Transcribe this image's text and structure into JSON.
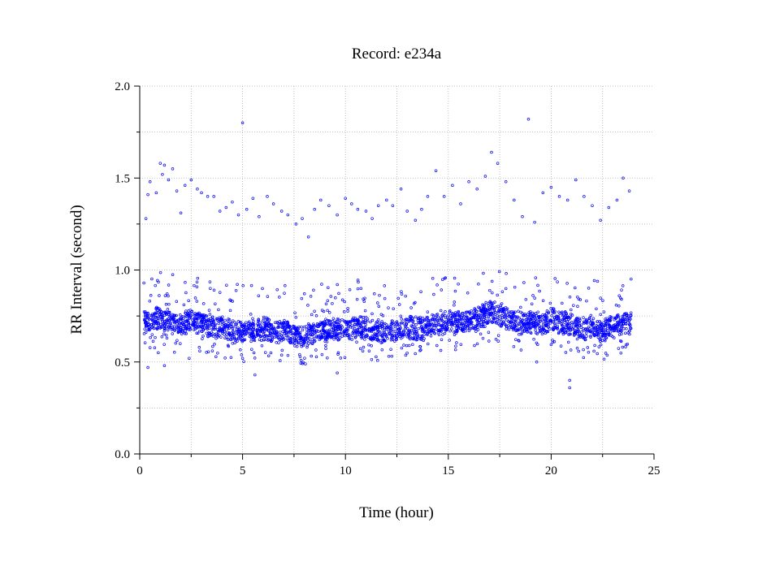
{
  "chart_data": {
    "type": "scatter",
    "title": "Record:  e234a",
    "xlabel": "Time (hour)",
    "ylabel": "RR Interval (second)",
    "xlim": [
      0,
      25
    ],
    "ylim": [
      0.0,
      2.0
    ],
    "x_ticks": [
      0,
      5,
      10,
      15,
      20,
      25
    ],
    "x_tick_labels": [
      "0",
      "5",
      "10",
      "15",
      "20",
      "25"
    ],
    "y_ticks": [
      0.0,
      0.5,
      1.0,
      1.5,
      2.0
    ],
    "y_tick_labels": [
      "0.0",
      "0.5",
      "1.0",
      "1.5",
      "2.0"
    ],
    "grid": true,
    "marker_color": "#0000ff",
    "main_band": [
      [
        0.2,
        0.72
      ],
      [
        0.5,
        0.73
      ],
      [
        1.0,
        0.74
      ],
      [
        1.5,
        0.72
      ],
      [
        2.0,
        0.7
      ],
      [
        2.5,
        0.73
      ],
      [
        3.0,
        0.71
      ],
      [
        3.5,
        0.69
      ],
      [
        4.0,
        0.68
      ],
      [
        4.5,
        0.67
      ],
      [
        5.0,
        0.66
      ],
      [
        5.5,
        0.67
      ],
      [
        6.0,
        0.68
      ],
      [
        6.5,
        0.67
      ],
      [
        7.0,
        0.66
      ],
      [
        7.5,
        0.65
      ],
      [
        8.0,
        0.64
      ],
      [
        8.5,
        0.66
      ],
      [
        9.0,
        0.67
      ],
      [
        9.5,
        0.68
      ],
      [
        10.0,
        0.67
      ],
      [
        10.5,
        0.69
      ],
      [
        11.0,
        0.68
      ],
      [
        11.5,
        0.66
      ],
      [
        12.0,
        0.67
      ],
      [
        12.5,
        0.68
      ],
      [
        13.0,
        0.69
      ],
      [
        13.5,
        0.68
      ],
      [
        14.0,
        0.69
      ],
      [
        14.5,
        0.71
      ],
      [
        15.0,
        0.72
      ],
      [
        15.5,
        0.71
      ],
      [
        16.0,
        0.72
      ],
      [
        16.5,
        0.74
      ],
      [
        17.0,
        0.77
      ],
      [
        17.5,
        0.76
      ],
      [
        18.0,
        0.73
      ],
      [
        18.5,
        0.71
      ],
      [
        19.0,
        0.72
      ],
      [
        19.5,
        0.7
      ],
      [
        20.0,
        0.73
      ],
      [
        20.5,
        0.72
      ],
      [
        21.0,
        0.7
      ],
      [
        21.5,
        0.68
      ],
      [
        22.0,
        0.69
      ],
      [
        22.5,
        0.67
      ],
      [
        23.0,
        0.69
      ],
      [
        23.5,
        0.71
      ],
      [
        23.9,
        0.71
      ]
    ],
    "upper_points": [
      [
        0.3,
        1.28
      ],
      [
        0.4,
        1.41
      ],
      [
        0.5,
        1.48
      ],
      [
        0.8,
        1.42
      ],
      [
        1.0,
        1.58
      ],
      [
        1.1,
        1.52
      ],
      [
        1.2,
        1.57
      ],
      [
        1.4,
        1.49
      ],
      [
        1.6,
        1.55
      ],
      [
        1.8,
        1.43
      ],
      [
        2.0,
        1.31
      ],
      [
        2.2,
        1.46
      ],
      [
        2.5,
        1.49
      ],
      [
        2.8,
        1.44
      ],
      [
        3.0,
        1.42
      ],
      [
        3.3,
        1.4
      ],
      [
        3.6,
        1.4
      ],
      [
        3.9,
        1.32
      ],
      [
        4.2,
        1.34
      ],
      [
        4.5,
        1.37
      ],
      [
        4.8,
        1.3
      ],
      [
        5.0,
        1.8
      ],
      [
        5.2,
        1.33
      ],
      [
        5.5,
        1.39
      ],
      [
        5.8,
        1.29
      ],
      [
        6.2,
        1.4
      ],
      [
        6.5,
        1.36
      ],
      [
        6.9,
        1.32
      ],
      [
        7.2,
        1.3
      ],
      [
        7.6,
        1.25
      ],
      [
        7.9,
        1.28
      ],
      [
        8.2,
        1.18
      ],
      [
        8.5,
        1.33
      ],
      [
        8.8,
        1.38
      ],
      [
        9.2,
        1.35
      ],
      [
        9.6,
        1.3
      ],
      [
        10.0,
        1.39
      ],
      [
        10.3,
        1.36
      ],
      [
        10.6,
        1.33
      ],
      [
        11.0,
        1.32
      ],
      [
        11.3,
        1.28
      ],
      [
        11.6,
        1.35
      ],
      [
        12.0,
        1.38
      ],
      [
        12.3,
        1.35
      ],
      [
        12.7,
        1.44
      ],
      [
        13.0,
        1.32
      ],
      [
        13.4,
        1.27
      ],
      [
        13.7,
        1.33
      ],
      [
        14.0,
        1.4
      ],
      [
        14.4,
        1.54
      ],
      [
        14.8,
        1.4
      ],
      [
        15.2,
        1.46
      ],
      [
        15.6,
        1.36
      ],
      [
        16.0,
        1.48
      ],
      [
        16.4,
        1.44
      ],
      [
        16.8,
        1.51
      ],
      [
        17.1,
        1.64
      ],
      [
        17.4,
        1.58
      ],
      [
        17.8,
        1.48
      ],
      [
        18.2,
        1.38
      ],
      [
        18.6,
        1.29
      ],
      [
        18.9,
        1.82
      ],
      [
        19.2,
        1.26
      ],
      [
        19.6,
        1.42
      ],
      [
        20.0,
        1.45
      ],
      [
        20.4,
        1.4
      ],
      [
        20.8,
        1.38
      ],
      [
        21.2,
        1.49
      ],
      [
        21.6,
        1.4
      ],
      [
        22.0,
        1.35
      ],
      [
        22.4,
        1.27
      ],
      [
        22.8,
        1.34
      ],
      [
        23.2,
        1.38
      ],
      [
        23.5,
        1.5
      ],
      [
        23.8,
        1.43
      ]
    ],
    "low_outliers": [
      [
        0.4,
        0.47
      ],
      [
        0.9,
        0.55
      ],
      [
        1.2,
        0.48
      ],
      [
        2.4,
        0.52
      ],
      [
        5.0,
        0.52
      ],
      [
        5.6,
        0.43
      ],
      [
        9.6,
        0.44
      ],
      [
        19.3,
        0.5
      ],
      [
        20.9,
        0.4
      ],
      [
        20.9,
        0.36
      ]
    ]
  }
}
